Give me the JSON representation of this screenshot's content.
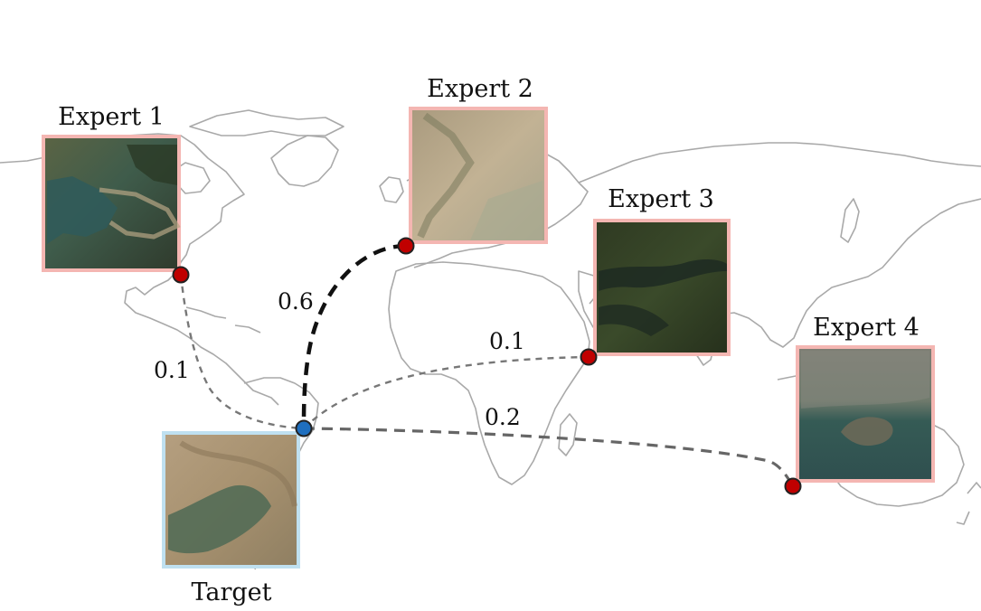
{
  "experts": [
    {
      "label": "Expert 1",
      "weight": "0.1",
      "frame_color": "#f4b6b2",
      "imagery": "forested lakeshore"
    },
    {
      "label": "Expert 2",
      "weight": "0.6",
      "frame_color": "#f4b6b2",
      "imagery": "arid hills"
    },
    {
      "label": "Expert 3",
      "weight": "0.1",
      "frame_color": "#f4b6b2",
      "imagery": "dense forest"
    },
    {
      "label": "Expert 4",
      "weight": "0.2",
      "frame_color": "#f4b6b2",
      "imagery": "urban bay"
    }
  ],
  "target": {
    "label": "Target",
    "frame_color": "#bfe0f0",
    "imagery": "dry terrain with reservoir"
  },
  "colors": {
    "map_outline": "#a9a9a9",
    "expert_marker": "#c00000",
    "target_marker": "#1f6fbf",
    "strong_link": "#111111",
    "weak_link": "#777777"
  }
}
